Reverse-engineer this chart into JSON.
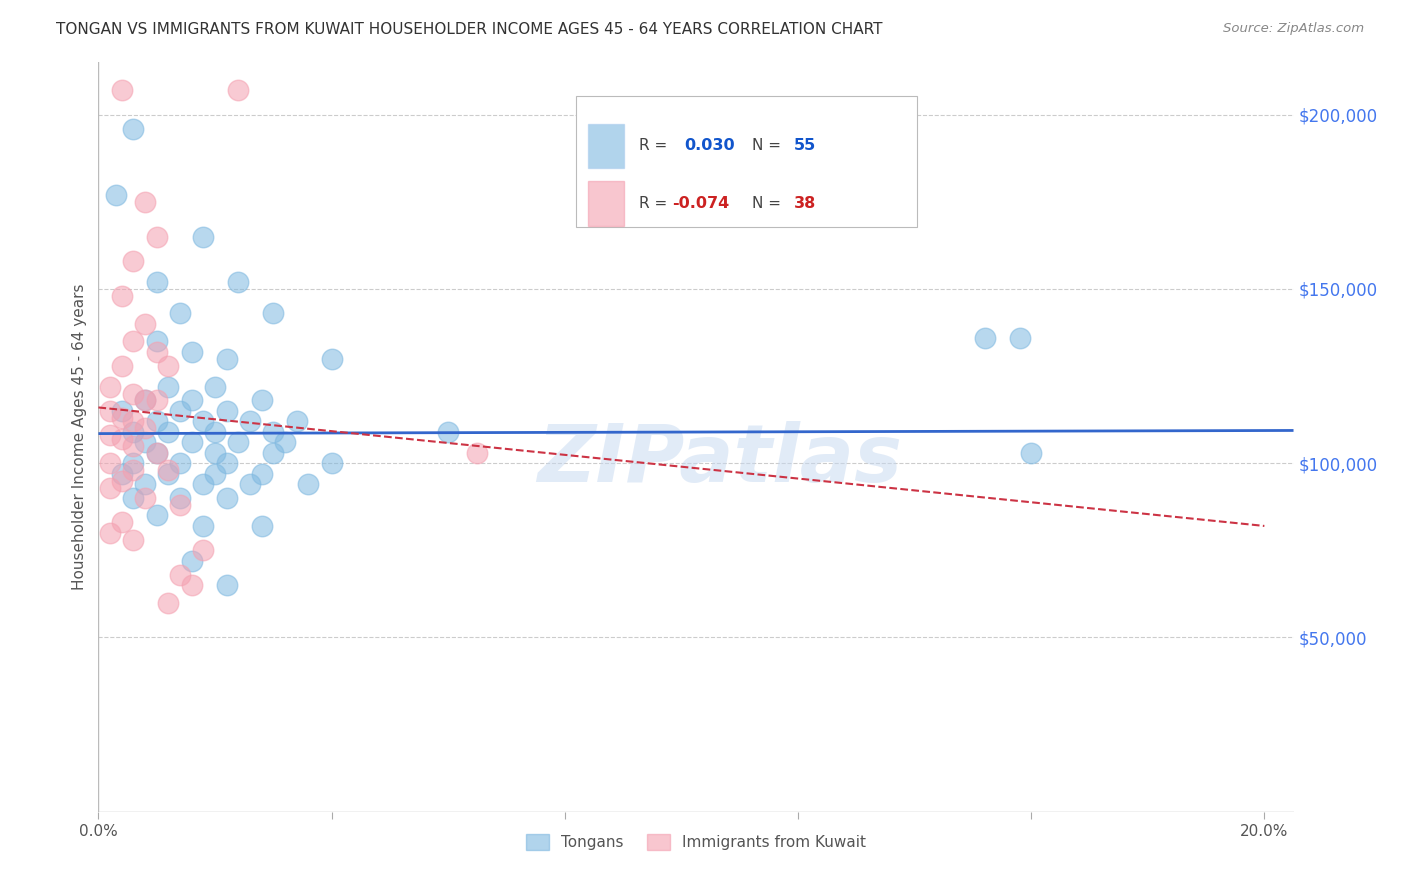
{
  "title": "TONGAN VS IMMIGRANTS FROM KUWAIT HOUSEHOLDER INCOME AGES 45 - 64 YEARS CORRELATION CHART",
  "source": "Source: ZipAtlas.com",
  "ylabel": "Householder Income Ages 45 - 64 years",
  "xlim": [
    0.0,
    0.205
  ],
  "ylim": [
    0,
    215000
  ],
  "xtick_positions": [
    0.0,
    0.04,
    0.08,
    0.12,
    0.16,
    0.2
  ],
  "xticklabels": [
    "0.0%",
    "",
    "",
    "",
    "",
    "20.0%"
  ],
  "ytick_labels_right": [
    "$200,000",
    "$150,000",
    "$100,000",
    "$50,000"
  ],
  "ytick_values_right": [
    200000,
    150000,
    100000,
    50000
  ],
  "legend_labels_bottom": [
    "Tongans",
    "Immigrants from Kuwait"
  ],
  "legend_colors_bottom": [
    "#7eb8e0",
    "#f4a0b0"
  ],
  "watermark": "ZIPatlas",
  "blue_points": [
    [
      0.006,
      196000
    ],
    [
      0.003,
      177000
    ],
    [
      0.018,
      165000
    ],
    [
      0.01,
      152000
    ],
    [
      0.024,
      152000
    ],
    [
      0.014,
      143000
    ],
    [
      0.03,
      143000
    ],
    [
      0.01,
      135000
    ],
    [
      0.016,
      132000
    ],
    [
      0.022,
      130000
    ],
    [
      0.04,
      130000
    ],
    [
      0.012,
      122000
    ],
    [
      0.02,
      122000
    ],
    [
      0.008,
      118000
    ],
    [
      0.016,
      118000
    ],
    [
      0.028,
      118000
    ],
    [
      0.004,
      115000
    ],
    [
      0.014,
      115000
    ],
    [
      0.022,
      115000
    ],
    [
      0.01,
      112000
    ],
    [
      0.018,
      112000
    ],
    [
      0.026,
      112000
    ],
    [
      0.034,
      112000
    ],
    [
      0.006,
      109000
    ],
    [
      0.012,
      109000
    ],
    [
      0.02,
      109000
    ],
    [
      0.03,
      109000
    ],
    [
      0.008,
      106000
    ],
    [
      0.016,
      106000
    ],
    [
      0.024,
      106000
    ],
    [
      0.032,
      106000
    ],
    [
      0.01,
      103000
    ],
    [
      0.02,
      103000
    ],
    [
      0.03,
      103000
    ],
    [
      0.006,
      100000
    ],
    [
      0.014,
      100000
    ],
    [
      0.022,
      100000
    ],
    [
      0.04,
      100000
    ],
    [
      0.004,
      97000
    ],
    [
      0.012,
      97000
    ],
    [
      0.02,
      97000
    ],
    [
      0.028,
      97000
    ],
    [
      0.008,
      94000
    ],
    [
      0.018,
      94000
    ],
    [
      0.026,
      94000
    ],
    [
      0.036,
      94000
    ],
    [
      0.006,
      90000
    ],
    [
      0.014,
      90000
    ],
    [
      0.022,
      90000
    ],
    [
      0.01,
      85000
    ],
    [
      0.018,
      82000
    ],
    [
      0.028,
      82000
    ],
    [
      0.016,
      72000
    ],
    [
      0.022,
      65000
    ],
    [
      0.06,
      109000
    ],
    [
      0.152,
      136000
    ],
    [
      0.158,
      136000
    ],
    [
      0.16,
      103000
    ]
  ],
  "pink_points": [
    [
      0.004,
      207000
    ],
    [
      0.024,
      207000
    ],
    [
      0.008,
      175000
    ],
    [
      0.01,
      165000
    ],
    [
      0.006,
      158000
    ],
    [
      0.004,
      148000
    ],
    [
      0.008,
      140000
    ],
    [
      0.006,
      135000
    ],
    [
      0.01,
      132000
    ],
    [
      0.004,
      128000
    ],
    [
      0.012,
      128000
    ],
    [
      0.002,
      122000
    ],
    [
      0.006,
      120000
    ],
    [
      0.008,
      118000
    ],
    [
      0.01,
      118000
    ],
    [
      0.002,
      115000
    ],
    [
      0.004,
      113000
    ],
    [
      0.006,
      112000
    ],
    [
      0.008,
      110000
    ],
    [
      0.002,
      108000
    ],
    [
      0.004,
      107000
    ],
    [
      0.006,
      105000
    ],
    [
      0.01,
      103000
    ],
    [
      0.002,
      100000
    ],
    [
      0.006,
      98000
    ],
    [
      0.012,
      98000
    ],
    [
      0.004,
      95000
    ],
    [
      0.002,
      93000
    ],
    [
      0.008,
      90000
    ],
    [
      0.014,
      88000
    ],
    [
      0.004,
      83000
    ],
    [
      0.002,
      80000
    ],
    [
      0.006,
      78000
    ],
    [
      0.018,
      75000
    ],
    [
      0.014,
      68000
    ],
    [
      0.016,
      65000
    ],
    [
      0.065,
      103000
    ],
    [
      0.012,
      60000
    ]
  ],
  "blue_line_x": [
    0.0,
    0.205
  ],
  "blue_line_y": [
    108500,
    109400
  ],
  "pink_line_x": [
    0.0,
    0.2
  ],
  "pink_line_y": [
    116000,
    82000
  ],
  "title_color": "#333333",
  "source_color": "#888888",
  "blue_scatter_color": "#7eb8e0",
  "pink_scatter_color": "#f4a0b0",
  "blue_line_color": "#3366cc",
  "pink_line_color": "#cc3344",
  "right_tick_color": "#4477ee",
  "background_color": "#ffffff"
}
